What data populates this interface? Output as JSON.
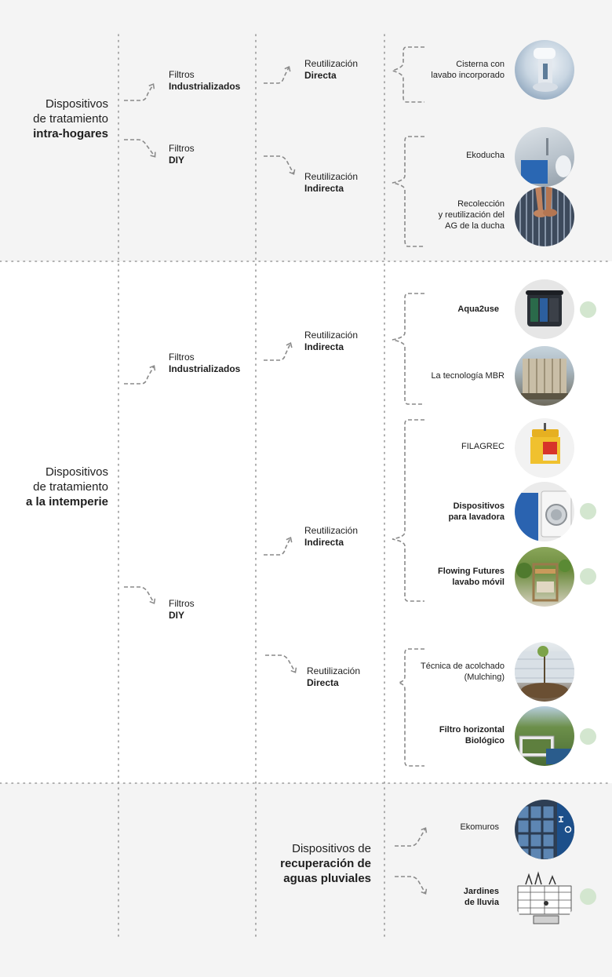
{
  "sections": [
    {
      "title_line1": "Dispositivos",
      "title_line2": "de tratamiento",
      "title_bold": "intra-hogares",
      "filters": [
        {
          "label": "Filtros",
          "bold": "Industrializados"
        },
        {
          "label": "Filtros",
          "bold": "DIY"
        }
      ],
      "reuse": [
        {
          "label": "Reutilización",
          "bold": "Directa"
        },
        {
          "label": "Reutilización",
          "bold": "Indirecta"
        }
      ],
      "items": [
        {
          "line1": "Cisterna con",
          "line2": "lavabo incorporado",
          "image": "toilet-sink-photo",
          "marked": false
        },
        {
          "line1": "Ekoducha",
          "line2": "",
          "image": "shower-photo",
          "marked": false
        },
        {
          "line1": "Recolección",
          "line2": "y reutilización del",
          "line3": "AG de la ducha",
          "image": "shower-feet-photo",
          "marked": false
        }
      ]
    },
    {
      "title_line1": "Dispositivos",
      "title_line2": "de tratamiento",
      "title_bold": "a la intemperie",
      "filters": [
        {
          "label": "Filtros",
          "bold": "Industrializados"
        },
        {
          "label": "Filtros",
          "bold": "DIY"
        }
      ],
      "reuse": [
        {
          "label": "Reutilización",
          "bold": "Indirecta"
        },
        {
          "label": "Reutilización",
          "bold": "Indirecta"
        },
        {
          "label": "Reutilización",
          "bold": "Directa"
        }
      ],
      "items": [
        {
          "line1": "Aqua2use",
          "line2": "",
          "image": "aqua2use-photo",
          "marked": true
        },
        {
          "line1": "La tecnología MBR",
          "line2": "",
          "image": "mbr-photo",
          "marked": false
        },
        {
          "line1": "FILAGREC",
          "line2": "",
          "image": "filagrec-photo",
          "marked": false
        },
        {
          "line1": "Dispositivos",
          "line2": "para lavadora",
          "image": "washing-machine-photo",
          "marked": true
        },
        {
          "line1": "Flowing Futures",
          "line2": "lavabo móvil",
          "image": "mobile-sink-photo",
          "marked": true
        },
        {
          "line1": "Técnica de acolchado",
          "line2": "(Mulching)",
          "image": "mulching-photo",
          "marked": false
        },
        {
          "line1": "Filtro horizontal",
          "line2": "Biológico",
          "image": "biofilter-photo",
          "marked": true
        }
      ]
    },
    {
      "title_line1": "Dispositivos de",
      "title_bold2": "recuperación de",
      "title_bold3": "aguas pluviales",
      "items": [
        {
          "line1": "Ekomuros",
          "line2": "",
          "image": "ekomuros-photo",
          "marked": false
        },
        {
          "line1": "Jardines",
          "line2": "de lluvia",
          "image": "rain-garden-sketch",
          "marked": true
        }
      ]
    }
  ],
  "colors": {
    "band_gray": "#f4f4f4",
    "marker_green": "#d3e6cf",
    "arrow_gray": "#8a8a8a",
    "dotted_gray": "#9a9a9a"
  }
}
